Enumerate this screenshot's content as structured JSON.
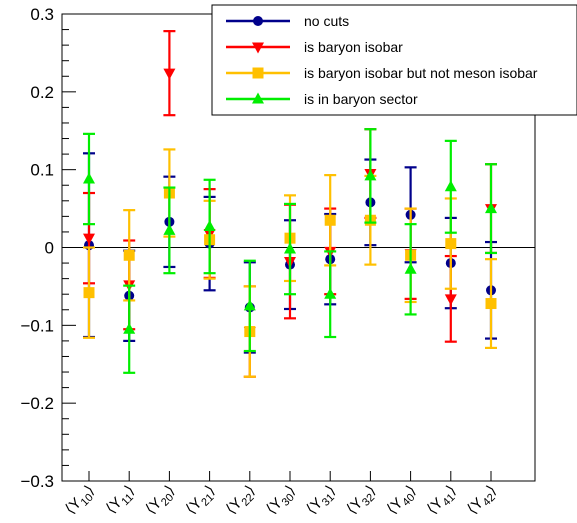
{
  "chart_data": {
    "type": "scatter",
    "title": "",
    "xlabel": "",
    "ylabel": "",
    "ylim": [
      -0.3,
      0.3
    ],
    "yticks": [
      -0.3,
      -0.2,
      -0.1,
      0,
      0.1,
      0.2,
      0.3
    ],
    "ytick_labels": [
      "−0.3",
      "−0.2",
      "−0.1",
      "0",
      "0.1",
      "0.2",
      "0.3"
    ],
    "categories": [
      {
        "base": "⟨Y",
        "sub": "10",
        "close": "⟩"
      },
      {
        "base": "⟨Y",
        "sub": "11",
        "close": "⟩"
      },
      {
        "base": "⟨Y",
        "sub": "20",
        "close": "⟩"
      },
      {
        "base": "⟨Y",
        "sub": "21",
        "close": "⟩"
      },
      {
        "base": "⟨Y",
        "sub": "22",
        "close": "⟩"
      },
      {
        "base": "⟨Y",
        "sub": "30",
        "close": "⟩"
      },
      {
        "base": "⟨Y",
        "sub": "31",
        "close": "⟩"
      },
      {
        "base": "⟨Y",
        "sub": "32",
        "close": "⟩"
      },
      {
        "base": "⟨Y",
        "sub": "40",
        "close": "⟩"
      },
      {
        "base": "⟨Y",
        "sub": "41",
        "close": "⟩"
      },
      {
        "base": "⟨Y",
        "sub": "42",
        "close": "⟩"
      }
    ],
    "legend_position": "top-right",
    "zero_line": true,
    "series": [
      {
        "name": "no cuts",
        "color": "#00008b",
        "marker": "circle",
        "x_offset": 0.0,
        "values": [
          0.003,
          -0.062,
          0.033,
          0.005,
          -0.077,
          -0.022,
          -0.015,
          0.058,
          0.042,
          -0.02,
          -0.055
        ],
        "errors": [
          0.118,
          0.058,
          0.058,
          0.06,
          0.058,
          0.057,
          0.058,
          0.055,
          0.061,
          0.058,
          0.062
        ]
      },
      {
        "name": "is baryon isobar",
        "color": "#ff0000",
        "marker": "triangle-down",
        "x_offset": 0.0,
        "values": [
          0.012,
          -0.048,
          0.224,
          0.018,
          -0.108,
          -0.018,
          -0.005,
          0.095,
          -0.008,
          -0.066,
          0.05
        ],
        "errors": [
          0.058,
          0.057,
          0.054,
          0.057,
          0.058,
          0.073,
          0.055,
          0.057,
          0.058,
          0.055,
          0.057
        ]
      },
      {
        "name": "is baryon isobar but not meson isobar",
        "color": "#ffc000",
        "marker": "square",
        "x_offset": 0.0,
        "values": [
          -0.058,
          -0.01,
          0.07,
          0.01,
          -0.108,
          0.012,
          0.035,
          0.035,
          -0.01,
          0.005,
          -0.072
        ],
        "errors": [
          0.058,
          0.058,
          0.056,
          0.05,
          0.058,
          0.055,
          0.058,
          0.057,
          0.06,
          0.058,
          0.057
        ]
      },
      {
        "name": "is in baryon sector",
        "color": "#00ee00",
        "marker": "triangle-up",
        "x_offset": 0.0,
        "values": [
          0.088,
          -0.105,
          0.022,
          0.027,
          -0.075,
          -0.002,
          -0.06,
          0.092,
          -0.028,
          0.078,
          0.05
        ],
        "errors": [
          0.058,
          0.056,
          0.055,
          0.06,
          0.058,
          0.058,
          0.055,
          0.06,
          0.058,
          0.059,
          0.057
        ]
      }
    ]
  }
}
